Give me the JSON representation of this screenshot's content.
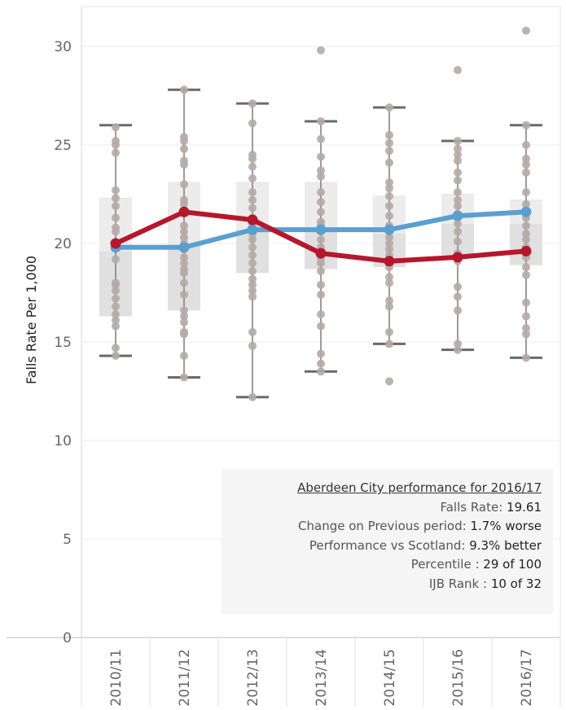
{
  "chart_data": {
    "type": "line",
    "ylabel": "Falls Rate Per 1,000",
    "ylim": [
      0,
      32
    ],
    "yticks": [
      0,
      5,
      10,
      15,
      20,
      25,
      30
    ],
    "categories": [
      "2010/11",
      "2011/12",
      "2012/13",
      "2013/14",
      "2014/15",
      "2015/16",
      "2016/17"
    ],
    "series": [
      {
        "color": "#5b9fd0",
        "values": [
          19.8,
          19.8,
          20.7,
          20.7,
          20.7,
          21.4,
          21.6
        ]
      },
      {
        "color": "#b5172c",
        "values": [
          20.0,
          21.6,
          21.2,
          19.5,
          19.1,
          19.3,
          19.61
        ]
      }
    ],
    "boxplots": [
      {
        "whisker_low": 14.3,
        "q1": 16.3,
        "median": 19.6,
        "q3": 22.3,
        "whisker_high": 26.0
      },
      {
        "whisker_low": 13.2,
        "q1": 16.6,
        "median": 19.9,
        "q3": 23.1,
        "whisker_high": 27.8
      },
      {
        "whisker_low": 12.2,
        "q1": 18.5,
        "median": 20.7,
        "q3": 23.1,
        "whisker_high": 27.1
      },
      {
        "whisker_low": 13.5,
        "q1": 18.7,
        "median": 20.6,
        "q3": 23.1,
        "whisker_high": 26.2
      },
      {
        "whisker_low": 14.9,
        "q1": 18.8,
        "median": 20.5,
        "q3": 22.4,
        "whisker_high": 26.9
      },
      {
        "whisker_low": 14.6,
        "q1": 19.4,
        "median": 21.0,
        "q3": 22.5,
        "whisker_high": 25.2
      },
      {
        "whisker_low": 14.2,
        "q1": 18.9,
        "median": 21.0,
        "q3": 22.2,
        "whisker_high": 26.0
      }
    ],
    "points": [
      [
        14.3,
        14.7,
        15.8,
        16.1,
        16.4,
        16.8,
        17.2,
        17.6,
        17.9,
        18.0,
        19.2,
        20.0,
        20.6,
        20.8,
        21.3,
        21.9,
        22.3,
        22.7,
        24.6,
        25.0,
        25.2,
        25.9
      ],
      [
        13.2,
        14.3,
        15.4,
        15.5,
        16.0,
        16.3,
        16.6,
        17.4,
        18.0,
        18.5,
        18.7,
        19.0,
        19.3,
        19.7,
        20.0,
        20.3,
        20.6,
        20.9,
        21.6,
        22.0,
        22.2,
        23.0,
        24.0,
        24.2,
        24.8,
        25.2,
        25.4,
        27.8
      ],
      [
        12.2,
        14.8,
        15.5,
        17.3,
        17.6,
        17.9,
        18.2,
        18.6,
        19.0,
        19.4,
        19.8,
        20.2,
        20.5,
        20.8,
        21.0,
        21.3,
        21.8,
        22.2,
        22.6,
        23.3,
        23.9,
        24.3,
        24.5,
        26.1,
        27.1
      ],
      [
        13.5,
        13.9,
        14.4,
        15.8,
        16.4,
        17.4,
        17.9,
        18.6,
        19.0,
        19.2,
        19.5,
        19.8,
        20.2,
        20.6,
        20.9,
        21.1,
        21.6,
        22.1,
        22.6,
        23.4,
        23.7,
        24.4,
        25.3,
        26.2,
        29.8
      ],
      [
        13.0,
        14.9,
        15.5,
        16.8,
        17.1,
        18.0,
        18.3,
        18.8,
        19.1,
        19.4,
        19.7,
        20.0,
        20.3,
        20.6,
        20.9,
        21.4,
        21.9,
        22.4,
        22.8,
        23.1,
        24.1,
        24.7,
        25.1,
        25.5,
        26.9
      ],
      [
        14.6,
        14.9,
        16.6,
        17.3,
        17.8,
        19.1,
        19.5,
        20.1,
        20.6,
        21.0,
        21.5,
        21.9,
        22.2,
        22.6,
        23.2,
        23.6,
        24.2,
        24.5,
        24.8,
        25.2,
        28.8
      ],
      [
        14.2,
        15.4,
        15.7,
        16.3,
        17.0,
        18.4,
        18.8,
        19.3,
        19.8,
        20.2,
        20.5,
        20.9,
        21.3,
        21.7,
        22.0,
        22.6,
        23.6,
        24.0,
        24.3,
        25.0,
        26.0,
        30.8
      ]
    ]
  },
  "info": {
    "title": "Aberdeen City performance for 2016/17",
    "rows": [
      {
        "label": "Falls Rate: ",
        "value": "19.61"
      },
      {
        "label": "Change on Previous period: ",
        "value": "1.7% worse"
      },
      {
        "label": "Performance vs Scotland: ",
        "value": "9.3% better"
      },
      {
        "label": "Percentile : ",
        "value": "29 of 100"
      },
      {
        "label": "IJB Rank : ",
        "value": "10 of 32"
      }
    ]
  }
}
